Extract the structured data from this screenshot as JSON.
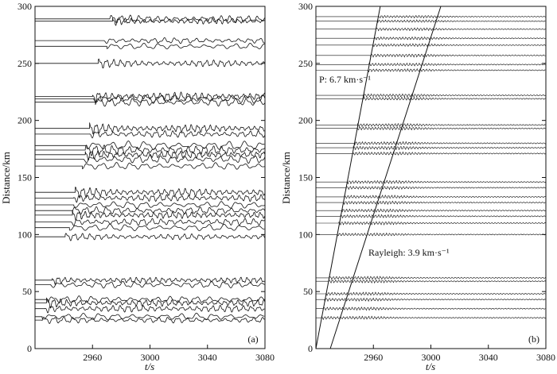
{
  "chart_data": [
    {
      "type": "line",
      "title": "",
      "panel_label": "(a)",
      "xlabel": "t/s",
      "ylabel": "Distance/km",
      "xlim": [
        2920,
        3080
      ],
      "ylim": [
        0,
        300
      ],
      "xticks": [
        2960,
        3000,
        3040,
        3080
      ],
      "yticks": [
        0,
        50,
        100,
        150,
        200,
        250,
        300
      ],
      "grid": false,
      "series_description": "Seismogram traces plotted at epicentral distance; each trace begins with a first arrival",
      "traces": [
        {
          "distance": 289,
          "onset": 2972,
          "amp": 3.5
        },
        {
          "distance": 287,
          "onset": 2974,
          "amp": 3.0
        },
        {
          "distance": 270,
          "onset": 2968,
          "amp": 3.0
        },
        {
          "distance": 265,
          "onset": 2970,
          "amp": 3.0
        },
        {
          "distance": 250,
          "onset": 2964,
          "amp": 3.5
        },
        {
          "distance": 221,
          "onset": 2960,
          "amp": 4.5
        },
        {
          "distance": 219,
          "onset": 2961,
          "amp": 4.5
        },
        {
          "distance": 216,
          "onset": 2962,
          "amp": 4.0
        },
        {
          "distance": 193,
          "onset": 2958,
          "amp": 4.0
        },
        {
          "distance": 188,
          "onset": 2958,
          "amp": 3.5
        },
        {
          "distance": 178,
          "onset": 2956,
          "amp": 4.5
        },
        {
          "distance": 174,
          "onset": 2955,
          "amp": 4.5
        },
        {
          "distance": 170,
          "onset": 2955,
          "amp": 4.0
        },
        {
          "distance": 166,
          "onset": 2954,
          "amp": 4.0
        },
        {
          "distance": 160,
          "onset": 2953,
          "amp": 3.5
        },
        {
          "distance": 137,
          "onset": 2948,
          "amp": 4.0
        },
        {
          "distance": 132,
          "onset": 2947,
          "amp": 3.5
        },
        {
          "distance": 126,
          "onset": 2947,
          "amp": 3.5
        },
        {
          "distance": 121,
          "onset": 2946,
          "amp": 3.5
        },
        {
          "distance": 117,
          "onset": 2946,
          "amp": 3.5
        },
        {
          "distance": 111,
          "onset": 2945,
          "amp": 3.5
        },
        {
          "distance": 106,
          "onset": 2944,
          "amp": 3.5
        },
        {
          "distance": 98,
          "onset": 2941,
          "amp": 3.0
        },
        {
          "distance": 60,
          "onset": 2932,
          "amp": 3.0
        },
        {
          "distance": 56,
          "onset": 2931,
          "amp": 3.5
        },
        {
          "distance": 43,
          "onset": 2929,
          "amp": 3.5
        },
        {
          "distance": 40,
          "onset": 2928,
          "amp": 3.5
        },
        {
          "distance": 35,
          "onset": 2927,
          "amp": 3.5
        },
        {
          "distance": 28,
          "onset": 2925,
          "amp": 3.5
        },
        {
          "distance": 25,
          "onset": 2925,
          "amp": 3.0
        }
      ]
    },
    {
      "type": "line",
      "title": "",
      "panel_label": "(b)",
      "xlabel": "t/s",
      "ylabel": "Distance/km",
      "xlim": [
        2920,
        3080
      ],
      "ylim": [
        0,
        300
      ],
      "xticks": [
        2960,
        3000,
        3040,
        3080
      ],
      "yticks": [
        0,
        50,
        100,
        150,
        200,
        250,
        300
      ],
      "grid": false,
      "annotations": [
        {
          "text": "P: 6.7 km·s⁻¹",
          "x": 2920,
          "y": 228
        },
        {
          "text": "Rayleigh: 3.9 km·s⁻¹",
          "x": 2953,
          "y": 82
        }
      ],
      "moveout_lines": [
        {
          "name": "P",
          "velocity_km_s": 6.7,
          "origin_time": 2920
        },
        {
          "name": "Rayleigh",
          "velocity_km_s": 3.9,
          "origin_time": 2930
        }
      ],
      "traces": [
        {
          "distance": 291,
          "onset": 2964,
          "amp": 1.8
        },
        {
          "distance": 287,
          "onset": 2963,
          "amp": 1.8
        },
        {
          "distance": 280,
          "onset": 2962,
          "amp": 2.0
        },
        {
          "distance": 272,
          "onset": 2961,
          "amp": 2.0
        },
        {
          "distance": 266,
          "onset": 2960,
          "amp": 2.0
        },
        {
          "distance": 257,
          "onset": 2958,
          "amp": 2.2
        },
        {
          "distance": 249,
          "onset": 2957,
          "amp": 2.0
        },
        {
          "distance": 244,
          "onset": 2956,
          "amp": 2.0
        },
        {
          "distance": 222,
          "onset": 2953,
          "amp": 2.2
        },
        {
          "distance": 219,
          "onset": 2953,
          "amp": 2.2
        },
        {
          "distance": 196,
          "onset": 2949,
          "amp": 2.2
        },
        {
          "distance": 193,
          "onset": 2949,
          "amp": 2.2
        },
        {
          "distance": 180,
          "onset": 2947,
          "amp": 2.2
        },
        {
          "distance": 176,
          "onset": 2946,
          "amp": 2.4
        },
        {
          "distance": 171,
          "onset": 2946,
          "amp": 2.2
        },
        {
          "distance": 146,
          "onset": 2942,
          "amp": 2.2
        },
        {
          "distance": 141,
          "onset": 2941,
          "amp": 2.2
        },
        {
          "distance": 133,
          "onset": 2940,
          "amp": 2.2
        },
        {
          "distance": 128,
          "onset": 2939,
          "amp": 2.2
        },
        {
          "distance": 121,
          "onset": 2938,
          "amp": 2.2
        },
        {
          "distance": 116,
          "onset": 2937,
          "amp": 2.2
        },
        {
          "distance": 110,
          "onset": 2936,
          "amp": 2.2
        },
        {
          "distance": 100,
          "onset": 2935,
          "amp": 2.0
        },
        {
          "distance": 62,
          "onset": 2929,
          "amp": 2.2
        },
        {
          "distance": 59,
          "onset": 2929,
          "amp": 2.2
        },
        {
          "distance": 48,
          "onset": 2927,
          "amp": 2.2
        },
        {
          "distance": 43,
          "onset": 2926,
          "amp": 2.2
        },
        {
          "distance": 35,
          "onset": 2925,
          "amp": 2.2
        },
        {
          "distance": 27,
          "onset": 2924,
          "amp": 2.2
        }
      ]
    }
  ]
}
